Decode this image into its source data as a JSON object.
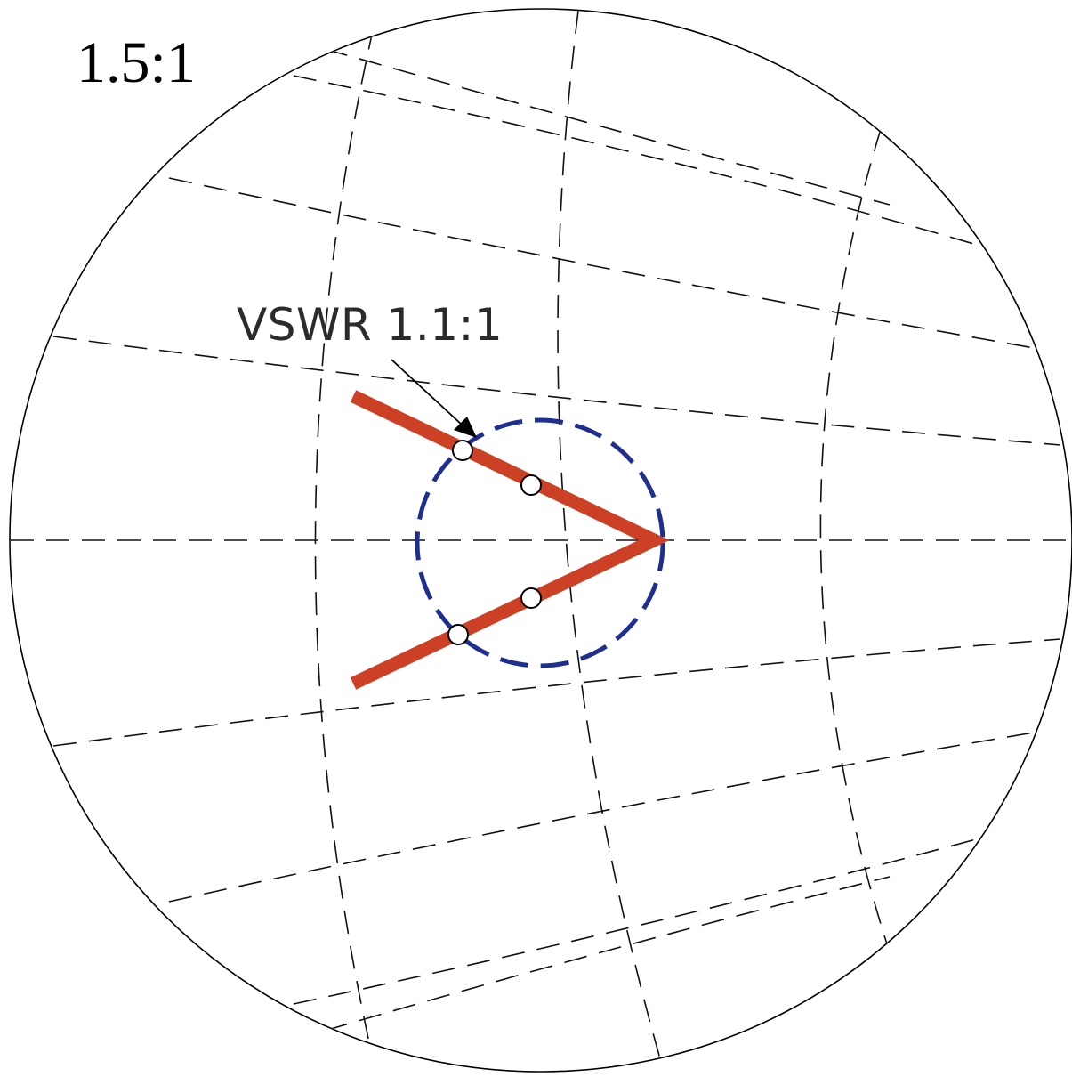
{
  "title": "1.5:1",
  "annotation": {
    "label": "VSWR 1.1:1"
  },
  "colors": {
    "outline": "#000000",
    "grid": "#111111",
    "trace": "#cc4125",
    "vswr_circle": "#1f2f8f",
    "marker_fill": "#ffffff"
  },
  "diagram": {
    "type": "smith-chart-zoom",
    "markers": 4,
    "trace_shape": "v-shaped"
  }
}
